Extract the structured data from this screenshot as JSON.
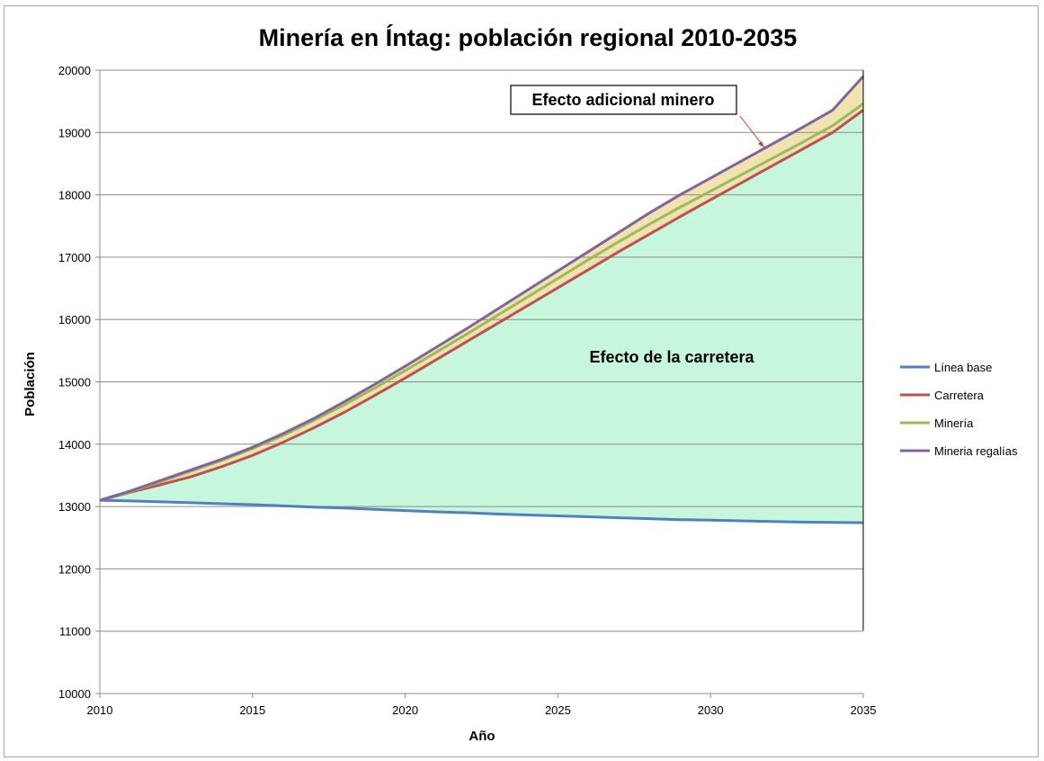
{
  "chart_data": {
    "type": "line",
    "title": "Minería en Íntag: población regional 2010-2035",
    "xlabel": "Año",
    "ylabel": "Población",
    "xlim": [
      2010,
      2035
    ],
    "ylim": [
      10000,
      20000
    ],
    "x_ticks": [
      "2010",
      "2015",
      "2020",
      "2025",
      "2030",
      "2035"
    ],
    "y_ticks": [
      "10000",
      "11000",
      "12000",
      "13000",
      "14000",
      "15000",
      "16000",
      "17000",
      "18000",
      "19000",
      "20000"
    ],
    "grid": "horizontal",
    "legend_position": "right",
    "x": [
      2010,
      2011,
      2012,
      2013,
      2014,
      2015,
      2016,
      2017,
      2018,
      2019,
      2020,
      2021,
      2022,
      2023,
      2024,
      2025,
      2026,
      2027,
      2028,
      2029,
      2030,
      2031,
      2032,
      2033,
      2034,
      2035
    ],
    "series": [
      {
        "name": "Línea base",
        "color": "#4f81bd",
        "values": [
          13100,
          13090,
          13075,
          13060,
          13045,
          13030,
          13010,
          12990,
          12975,
          12955,
          12935,
          12915,
          12900,
          12880,
          12865,
          12850,
          12835,
          12820,
          12805,
          12790,
          12780,
          12770,
          12760,
          12750,
          12745,
          12740
        ]
      },
      {
        "name": "Carretera",
        "color": "#c0504d",
        "values": [
          13100,
          13230,
          13350,
          13480,
          13640,
          13820,
          14030,
          14260,
          14510,
          14780,
          15060,
          15350,
          15640,
          15930,
          16220,
          16510,
          16800,
          17090,
          17370,
          17650,
          17920,
          18190,
          18460,
          18730,
          19000,
          19360
        ]
      },
      {
        "name": "Minería",
        "color": "#9bbb59",
        "values": [
          13100,
          13240,
          13400,
          13570,
          13740,
          13930,
          14140,
          14380,
          14630,
          14900,
          15180,
          15470,
          15760,
          16060,
          16360,
          16660,
          16960,
          17250,
          17530,
          17800,
          18060,
          18320,
          18580,
          18840,
          19110,
          19460
        ]
      },
      {
        "name": "Mineria regalías",
        "color": "#8064a2",
        "values": [
          13100,
          13250,
          13420,
          13590,
          13760,
          13950,
          14170,
          14410,
          14680,
          14960,
          15250,
          15550,
          15850,
          16160,
          16470,
          16780,
          17090,
          17400,
          17710,
          18000,
          18270,
          18540,
          18810,
          19080,
          19360,
          19900
        ]
      }
    ],
    "fill_colors": {
      "road_effect": "#c6f6dc",
      "mining_effect": "#f1e2b2"
    },
    "annotations": [
      {
        "text": "Efecto adicional minero",
        "boxed": true
      },
      {
        "text": "Efecto de la carretera",
        "boxed": false
      }
    ]
  }
}
